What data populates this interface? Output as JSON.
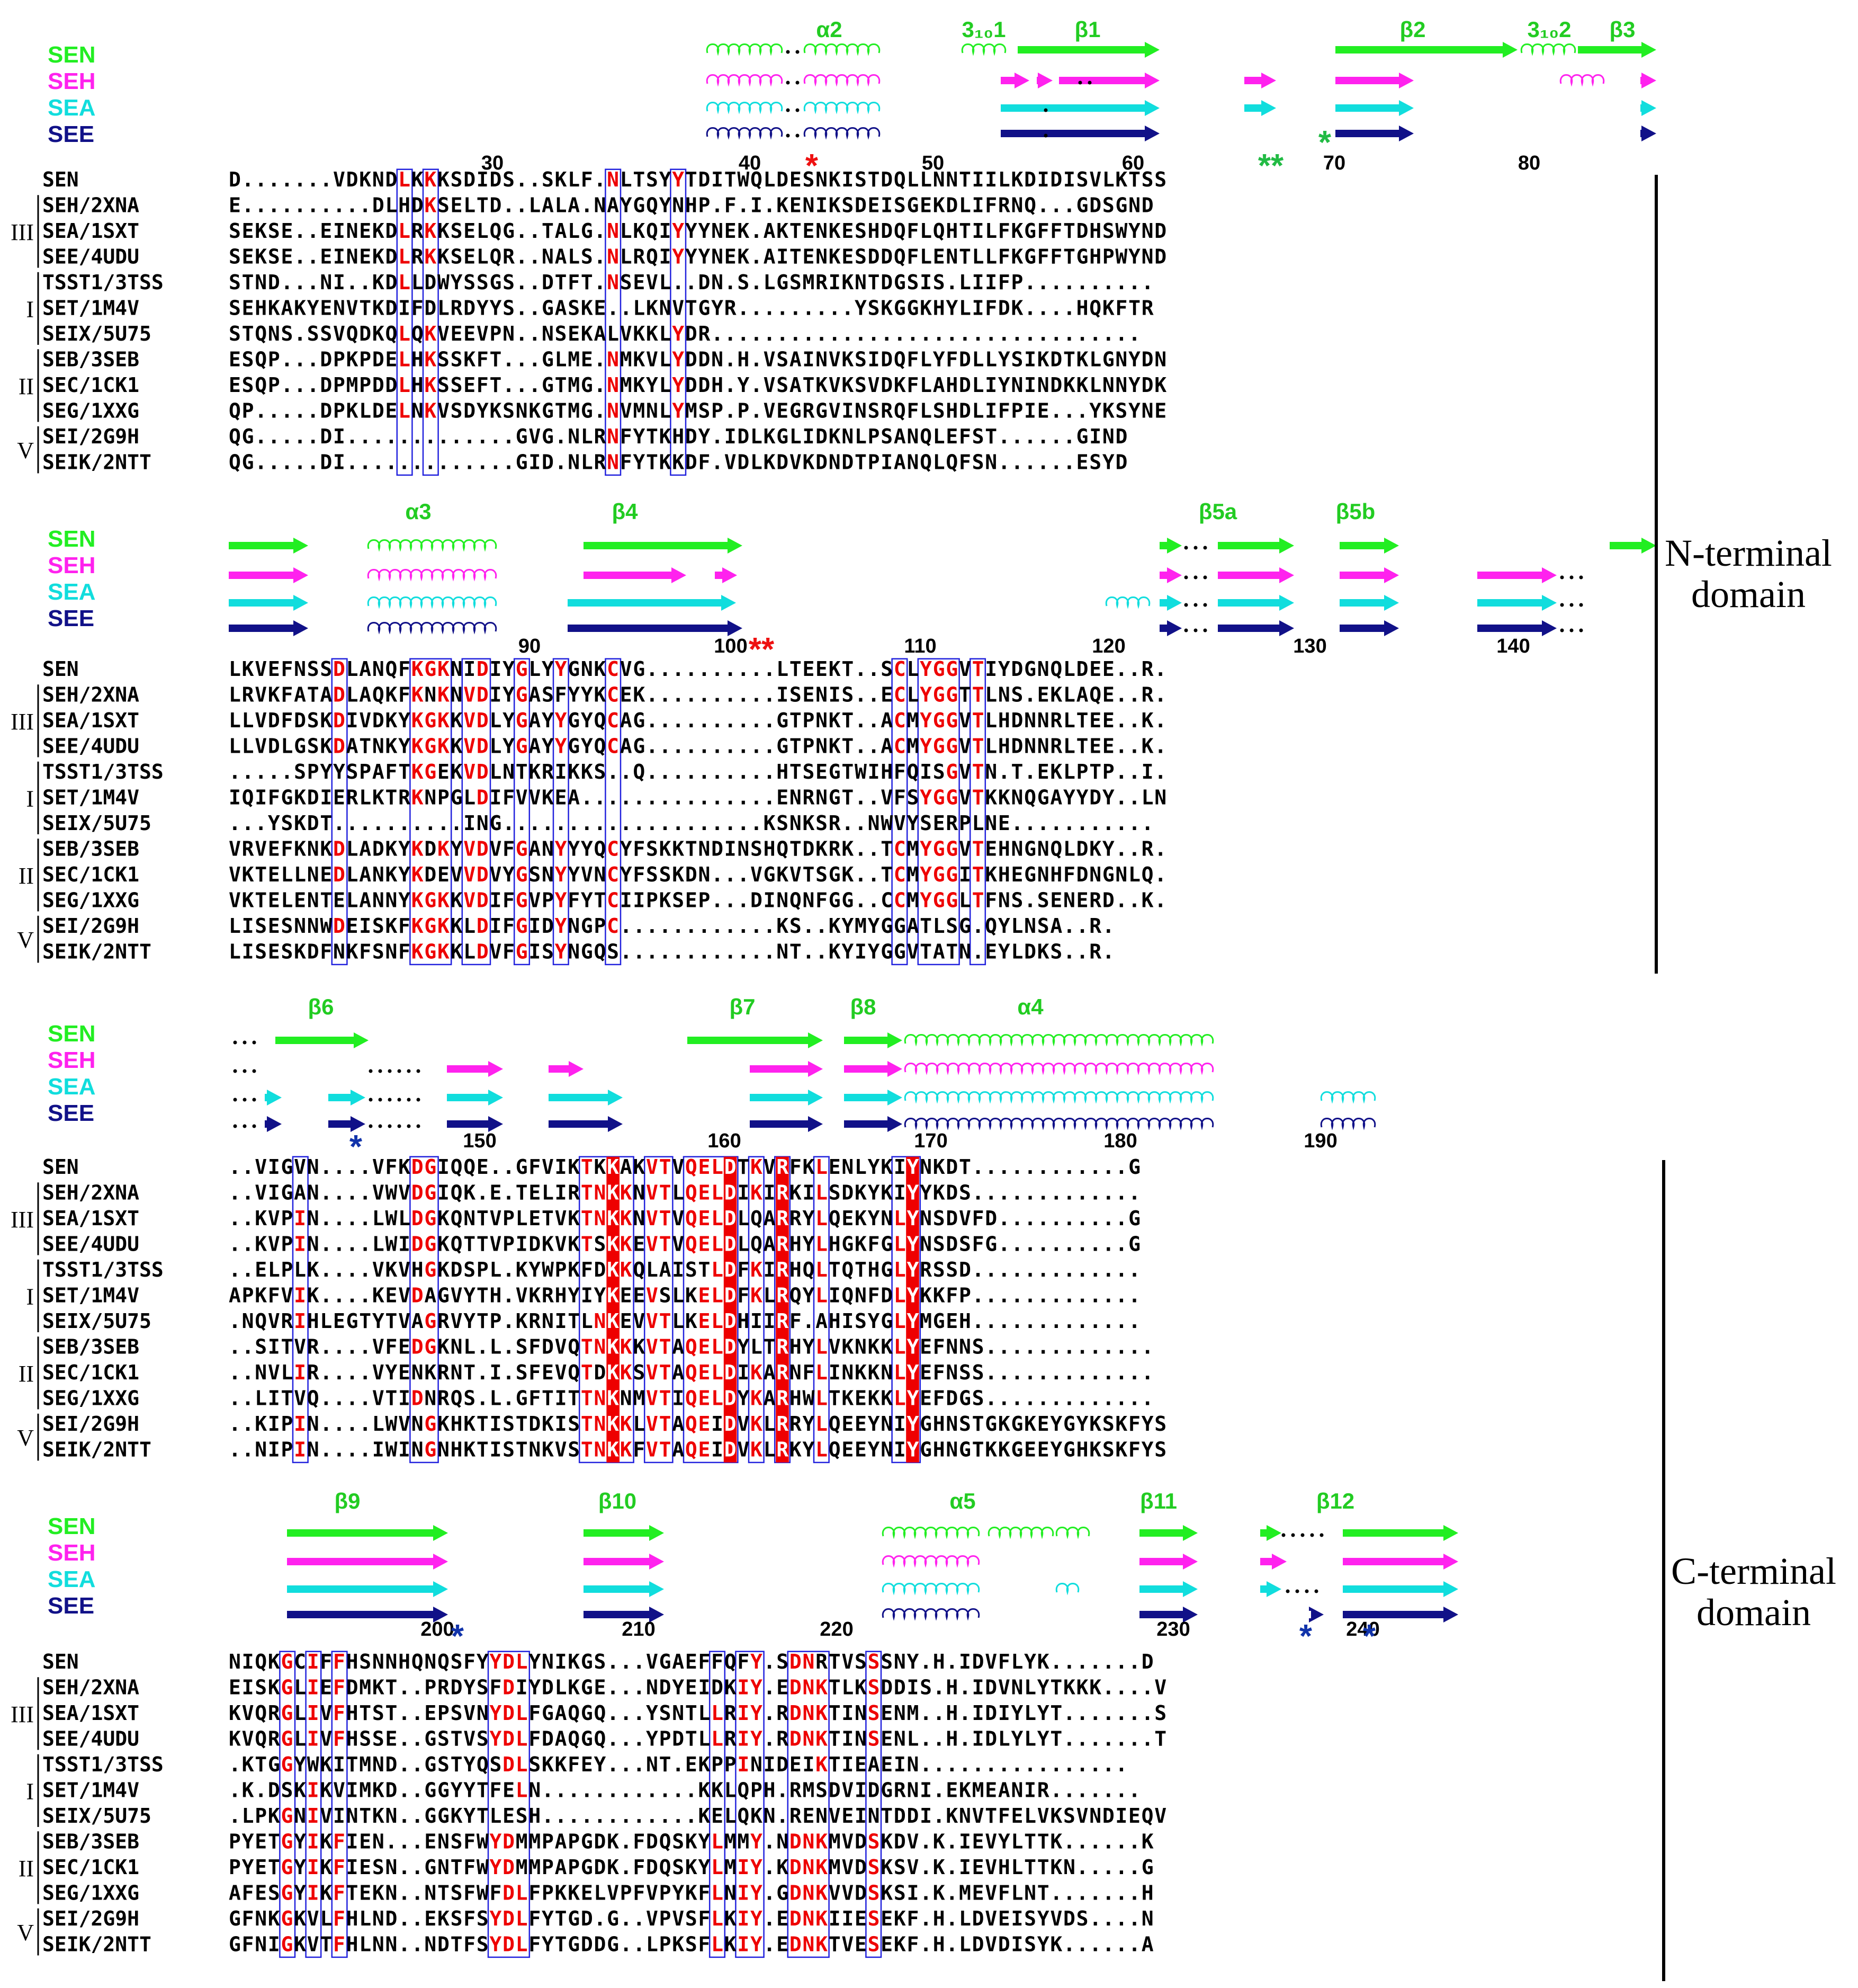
{
  "legend": [
    {
      "name": "SEN",
      "color": "#22ee22"
    },
    {
      "name": "SEH",
      "color": "#ff22ee"
    },
    {
      "name": "SEA",
      "color": "#11dddd"
    },
    {
      "name": "SEE",
      "color": "#111188"
    }
  ],
  "colors": {
    "conserved": "#ee0000",
    "similar_box": "#2222dd",
    "asterisk_red": "#ee1111",
    "asterisk_green": "#22bb44",
    "asterisk_blue": "#1133aa",
    "label_green": "#22cc22",
    "text": "#000000"
  },
  "domain_labels": [
    {
      "line1": "N-terminal",
      "line2": "domain"
    },
    {
      "line1": "C-terminal",
      "line2": "domain"
    }
  ],
  "blocks": [
    {
      "ss_labels": [
        "α2",
        "3₁₀1",
        "β1",
        "β2",
        "3₁₀2",
        "β3"
      ],
      "numbers": [
        {
          "pos": 30,
          "text": "30"
        },
        {
          "pos": 40,
          "text": "40"
        },
        {
          "pos": 50,
          "text": "50"
        },
        {
          "pos": 60,
          "text": "60"
        },
        {
          "pos": 70,
          "text": "70"
        },
        {
          "pos": 80,
          "text": "80"
        }
      ],
      "asterisks": [
        "*",
        "**",
        "*"
      ],
      "rows": [
        {
          "group": "",
          "name": "SEN",
          "seq": "D.......VDKNDLKKKSDIDS..SKLF.NLTSYYTDITWQLDESNKISTDQLLNNTIILKDIDISVLKTSS"
        },
        {
          "group": "III",
          "name": "SEH/2XNA",
          "seq": "E..........DLHDKSELTD..LALA.NAYGQYNHP.F.I.KENIKSDEISGEKDLIFRNQ...GDSGND"
        },
        {
          "group": "III",
          "name": "SEA/1SXT",
          "seq": "SEKSE..EINEKDLRKKSELQG..TALG.NLKQIYYYNEK.AKTENKESHDQFLQHTILFKGFFTDHSWYND"
        },
        {
          "group": "III",
          "name": "SEE/4UDU",
          "seq": "SEKSE..EINEKDLRKKSELQR..NALS.NLRQIYYYNEK.AITENKESDDQFLENTLLFKGFFTGHPWYND"
        },
        {
          "group": "I",
          "name": "TSST1/3TSS",
          "seq": "STND...NI..KDLLDWYSSGS..DTFT.NSEVL..DN.S.LGSMRIKNTDGSIS.LIIFP.........."
        },
        {
          "group": "I",
          "name": "SET/1M4V",
          "seq": "SEHKAKYENVTKDIFDLRDYYS..GASKE..LKNVTGYR.........YSKGGKHYLIFDK....HQKFTR"
        },
        {
          "group": "I",
          "name": "SEIX/5U75",
          "seq": "STQNS.SSVQDKQLQKVEEVPN..NSEKALVKKLYDR................................."
        },
        {
          "group": "II",
          "name": "SEB/3SEB",
          "seq": "ESQP...DPKPDELHKSSKFT...GLME.NMKVLYDDN.H.VSAINVKSIDQFLYFDLLYSIKDTKLGNYDN"
        },
        {
          "group": "II",
          "name": "SEC/1CK1",
          "seq": "ESQP...DPMPDDLHKSSEFT...GTMG.NMKYLYDDH.Y.VSATKVKSVDKFLAHDLIYNINDKKLNNYDK"
        },
        {
          "group": "II",
          "name": "SEG/1XXG",
          "seq": "QP.....DPKLDELNKVSDYKSNKGTMG.NVMNLYMSP.P.VEGRGVINSRQFLSHDLIFPIE...YKSYNE"
        },
        {
          "group": "V",
          "name": "SEI/2G9H",
          "seq": "QG.....DI.............GVG.NLRNFYTKHDY.IDLKGLIDKNLPSANQLEFST......GIND"
        },
        {
          "group": "V",
          "name": "SEIK/2NTT",
          "seq": "QG.....DI.............GID.NLRNFYTKKDF.VDLKDVKDNDTPIANQLQFSN......ESYD"
        }
      ]
    },
    {
      "ss_labels": [
        "α3",
        "β4",
        "β5a",
        "β5b"
      ],
      "numbers": [
        {
          "pos": 90,
          "text": "90"
        },
        {
          "pos": 100,
          "text": "100"
        },
        {
          "pos": 110,
          "text": "110"
        },
        {
          "pos": 120,
          "text": "120"
        },
        {
          "pos": 130,
          "text": "130"
        },
        {
          "pos": 140,
          "text": "140"
        }
      ],
      "asterisks": [
        "**"
      ],
      "rows": [
        {
          "group": "",
          "name": "SEN",
          "seq": "LKVEFNSSDLANQFKGKNIDIYGLYYGNKCVG..........LTEEKT..SCLYGGVTIYDGNQLDEE..R."
        },
        {
          "group": "III",
          "name": "SEH/2XNA",
          "seq": "LRVKFATADLAQKFKNKNVDIYGASFYYKCEK..........ISENIS..ECLYGGTTLNS.EKLAQE..R."
        },
        {
          "group": "III",
          "name": "SEA/1SXT",
          "seq": "LLVDFDSKDIVDKYKGKKVDLYGAYYGYQCAG..........GTPNKT..ACMYGGVTLHDNNRLTEE..K."
        },
        {
          "group": "III",
          "name": "SEE/4UDU",
          "seq": "LLVDLGSKDATNKYKGKKVDLYGAYYGYQCAG..........GTPNKT..ACMYGGVTLHDNNRLTEE..K."
        },
        {
          "group": "I",
          "name": "TSST1/3TSS",
          "seq": ".....SPYYSPAFTKGEKVDLNTKRIKKS..Q..........HTSEGTWIHFQISGVTN.T.EKLPTP..I."
        },
        {
          "group": "I",
          "name": "SET/1M4V",
          "seq": "IQIFGKDIERLKTRKNPGLDIFVVKEA...............ENRNGT..VFSYGGVTKKNQGAYYDY..LN"
        },
        {
          "group": "I",
          "name": "SEIX/5U75",
          "seq": "...YSKDT..........ING....................KSNKSR..NWVYSERPLNE..........."
        },
        {
          "group": "II",
          "name": "SEB/3SEB",
          "seq": "VRVEFKNKDLADKYKDKYVDVFGANYYYQCYFSKKTNDINSHQTDKRK..TCMYGGVTEHNGNQLDKY..R."
        },
        {
          "group": "II",
          "name": "SEC/1CK1",
          "seq": "VKTELLNEDLANKYKDEVVDVYGSNYYVNCYFSSKDN...VGKVTSGK..TCMYGGITKHEGNHFDNGNLQ."
        },
        {
          "group": "II",
          "name": "SEG/1XXG",
          "seq": "VKTELENTELANNYKGKKVDIFGVPYFYTCIIPKSEP...DINQNFGG..CCMYGGLTFNS.SENERD..K."
        },
        {
          "group": "V",
          "name": "SEI/2G9H",
          "seq": "LISESNNWDEISKFKGKKLDIFGIDYNGPC............KS..KYMYGGATLSG.QYLNSA..R."
        },
        {
          "group": "V",
          "name": "SEIK/2NTT",
          "seq": "LISESKDFNKFSNFKGKKLDVFGISYNGQS............NT..KYIYGGVTATN.EYLDKS..R."
        }
      ]
    },
    {
      "ss_labels": [
        "β6",
        "β7",
        "β8",
        "α4"
      ],
      "numbers": [
        {
          "pos": 150,
          "text": "150"
        },
        {
          "pos": 160,
          "text": "160"
        },
        {
          "pos": 170,
          "text": "170"
        },
        {
          "pos": 180,
          "text": "180"
        },
        {
          "pos": 190,
          "text": "190"
        }
      ],
      "asterisks": [
        "*"
      ],
      "rows": [
        {
          "group": "",
          "name": "SEN",
          "seq": "..VIGVN....VFKDGIQQE..GFVIKTKKAKVTVQELDTKVRFKLENLYKIYNKDT............G"
        },
        {
          "group": "III",
          "name": "SEH/2XNA",
          "seq": "..VIGAN....VWVDGIQK.E.TELIRTNKKNVTLQELDIKIRKILSDKYKIYYKDS............."
        },
        {
          "group": "III",
          "name": "SEA/1SXT",
          "seq": "..KVPIN....LWLDGKQNTVPLETVKTNKKNVTVQELDLQARRYLQEKYNLYNSDVFD..........G"
        },
        {
          "group": "III",
          "name": "SEE/4UDU",
          "seq": "..KVPIN....LWIDGKQTTVPIDKVKTSKKEVTVQELDLQARHYLHGKFGLYNSDSFG..........G"
        },
        {
          "group": "I",
          "name": "TSST1/3TSS",
          "seq": "..ELPLK....VKVHGKDSPL.KYWPKFDKKQLAISTLDFKIRHQLTQTHGLYRSSD............."
        },
        {
          "group": "I",
          "name": "SET/1M4V",
          "seq": "APKFVIK....KEVDAGVYTH.VKRHYIYKEEVSLKELDFKLRQYLIQNFDLYKKFP............."
        },
        {
          "group": "I",
          "name": "SEIX/5U75",
          "seq": ".NQVRIHLEGTYTVAGRVYTP.KRNITLNKEVVTLKELDHIIRF.AHISYGLYMGEH............."
        },
        {
          "group": "II",
          "name": "SEB/3SEB",
          "seq": "..SITVR....VFEDGKNL.L.SFDVQTNKKKVTAQELDYLTRHYLVKNKKLYEFNNS............."
        },
        {
          "group": "II",
          "name": "SEC/1CK1",
          "seq": "..NVLIR....VYENKRNT.I.SFEVQTDKKSVTAQELDIKARNFLINKKNLYEFNSS............."
        },
        {
          "group": "II",
          "name": "SEG/1XXG",
          "seq": "..LITVQ....VTIDNRQS.L.GFTITTNKNMVTIQELDYKARHWLTKEKKLYEFDGS............."
        },
        {
          "group": "V",
          "name": "SEI/2G9H",
          "seq": "..KIPIN....LWVNGKHKTISTDKISTNKKLVTAQEIDVKLRRYLQEEYNIYGHNSTGKGKEYGYKSKFYS"
        },
        {
          "group": "V",
          "name": "SEIK/2NTT",
          "seq": "..NIPIN....IWINGNHKTISTNKVSTNKKFVTAQEIDVKLRKYLQEEYNIYGHNGTKKGEEYGHKSKFYS"
        }
      ]
    },
    {
      "ss_labels": [
        "β9",
        "β10",
        "α5",
        "β11",
        "β12"
      ],
      "numbers": [
        {
          "pos": 200,
          "text": "200"
        },
        {
          "pos": 210,
          "text": "210"
        },
        {
          "pos": 220,
          "text": "220"
        },
        {
          "pos": 230,
          "text": "230"
        },
        {
          "pos": 240,
          "text": "240"
        }
      ],
      "asterisks": [
        "*",
        "*",
        "*"
      ],
      "rows": [
        {
          "group": "",
          "name": "SEN",
          "seq": "NIQKGCIFFHSNNHQNQSFYYDLYNIKGS...VGAEFFQFY.SDNRTVSSSNY.H.IDVFLYK.......D"
        },
        {
          "group": "III",
          "name": "SEH/2XNA",
          "seq": "EISKGLIEFDMKT..PRDYSFDIYDLKGE...NDYEIDKIY.EDNKTLKSDDIS.H.IDVNLYTKKK....V"
        },
        {
          "group": "III",
          "name": "SEA/1SXT",
          "seq": "KVQRGLIVFHTST..EPSVNYDLFGAQGQ...YSNTLLRIY.RDNKTINSENM..H.IDIYLYT.......S"
        },
        {
          "group": "III",
          "name": "SEE/4UDU",
          "seq": "KVQRGLIVFHSSE..GSTVSYDLFDAQGQ...YPDTLLRIY.RDNKTINSENL..H.IDLYLYT.......T"
        },
        {
          "group": "I",
          "name": "TSST1/3TSS",
          "seq": ".KTGGYWKITMND..GSTYQSDLSKKFEY...NT.EKPPINIDEIKTIEAEIN................"
        },
        {
          "group": "I",
          "name": "SET/1M4V",
          "seq": ".K.DSKIKVIMKD..GGYYTFELN............KKLQPH.RMSDVIDGRNI.EKMEANIR......."
        },
        {
          "group": "I",
          "name": "SEIX/5U75",
          "seq": ".LPKGNIVINTKN..GGKYTLESH............KELQKN.RENVEINTDDI.KNVTFELVKSVNDIEQV"
        },
        {
          "group": "II",
          "name": "SEB/3SEB",
          "seq": "PYETGYIKFIEN...ENSFWYDMMPAPGDK.FDQSKYLMMY.NDNKMVDSKDV.K.IEVYLTTK......K"
        },
        {
          "group": "II",
          "name": "SEC/1CK1",
          "seq": "PYETGYIKFIESN..GNTFWYDMMPAPGDK.FDQSKYLMIY.KDNKMVDSKSV.K.IEVHLTTKN.....G"
        },
        {
          "group": "II",
          "name": "SEG/1XXG",
          "seq": "AFESGYIKFTEKN..NTSFWFDLFPKKELVPFVPYKFLNIY.GDNKVVDSKSI.K.MEVFLNT.......H"
        },
        {
          "group": "V",
          "name": "SEI/2G9H",
          "seq": "GFNKGKVLFHLND..EKSFSYDLFYTGD.G..VPVSFLKIY.EDNKIIESEKF.H.LDVEISYVDS....N"
        },
        {
          "group": "V",
          "name": "SEIK/2NTT",
          "seq": "GFNIGKVTFHLNN..NDTFSYDLFYTGDDG..LPKSFLKIY.EDNKTVESEKF.H.LDVDISYK......A"
        }
      ]
    }
  ]
}
